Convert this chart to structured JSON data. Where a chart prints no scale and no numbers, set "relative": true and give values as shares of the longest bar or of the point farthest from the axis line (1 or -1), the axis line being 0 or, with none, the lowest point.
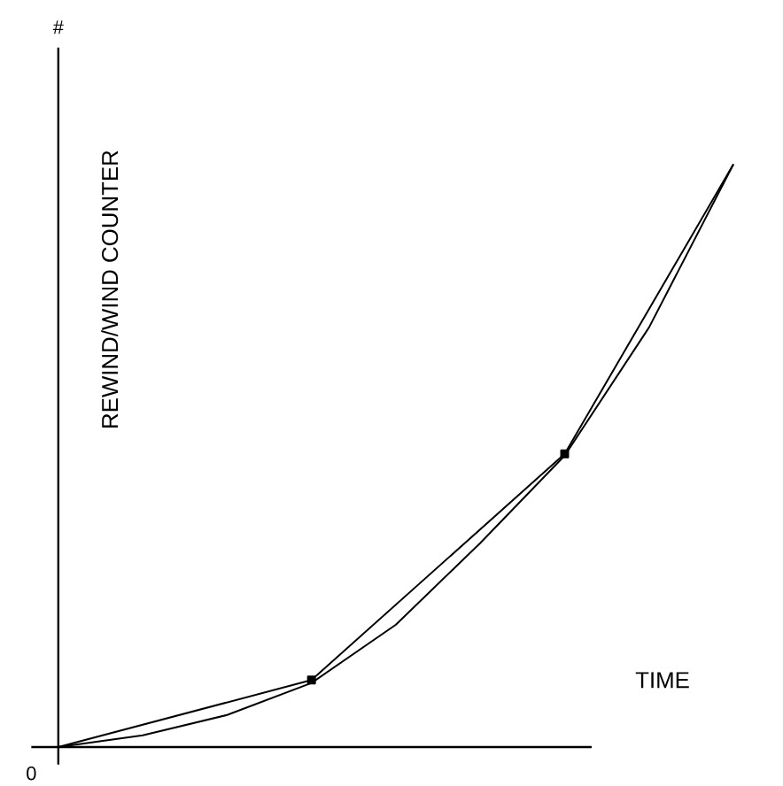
{
  "chart_data": {
    "type": "line",
    "relative": true,
    "xlabel": "TIME",
    "ylabel": "REWIND/WIND COUNTER",
    "annotations": [
      "#",
      "0"
    ],
    "categories": [
      null,
      null,
      null,
      null,
      null,
      null,
      null,
      null,
      null
    ],
    "series": [
      {
        "color": "#000000",
        "marker": "none",
        "values": [
          0,
          0.02,
          0.055,
          0.11,
          0.21,
          0.35,
          0.5,
          0.72,
          1.0
        ]
      },
      {
        "color": "#000000",
        "marker": "square",
        "values": [
          0,
          null,
          null,
          0.115,
          null,
          null,
          0.503,
          null,
          1.0
        ]
      }
    ]
  }
}
